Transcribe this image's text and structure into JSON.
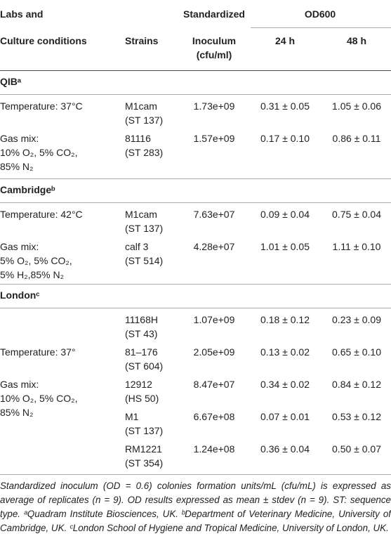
{
  "table": {
    "header": {
      "labs": [
        "Labs and",
        "Culture conditions"
      ],
      "strains": "Strains",
      "inoculum": [
        "Standardized",
        "Inoculum",
        "(cfu/ml)"
      ],
      "od": "OD600",
      "od24": "24 h",
      "od48": "48 h"
    },
    "sections": [
      {
        "title": "QIBᵃ",
        "rows": [
          {
            "conditions": [
              "Temperature: 37°C"
            ],
            "strain": [
              "M1cam",
              "(ST 137)"
            ],
            "inoculum": "1.73e+09",
            "od24": "0.31 ± 0.05",
            "od48": "1.05 ± 0.06"
          },
          {
            "conditions": [
              "Gas mix:",
              "10% O₂, 5% CO₂,",
              "85% N₂"
            ],
            "strain": [
              "81116",
              "(ST 283)"
            ],
            "inoculum": "1.57e+09",
            "od24": "0.17 ± 0.10",
            "od48": "0.86 ± 0.11"
          }
        ]
      },
      {
        "title": "Cambridgeᵇ",
        "rows": [
          {
            "conditions": [
              "Temperature: 42°C"
            ],
            "strain": [
              "M1cam",
              "(ST 137)"
            ],
            "inoculum": "7.63e+07",
            "od24": "0.09 ± 0.04",
            "od48": "0.75 ± 0.04"
          },
          {
            "conditions": [
              "Gas mix:",
              "5% O₂, 5% CO₂,",
              "5% H₂,85% N₂"
            ],
            "strain": [
              "calf 3",
              "(ST 514)"
            ],
            "inoculum": "4.28e+07",
            "od24": "1.01 ± 0.05",
            "od48": "1.11 ± 0.10"
          }
        ]
      },
      {
        "title": "Londonᶜ",
        "rows": [
          {
            "conditions": [],
            "strain": [
              "11168H",
              "(ST 43)"
            ],
            "inoculum": "1.07e+09",
            "od24": "0.18 ± 0.12",
            "od48": "0.23 ± 0.09"
          },
          {
            "conditions": [
              "Temperature: 37°"
            ],
            "strain": [
              "81–176",
              "(ST 604)"
            ],
            "inoculum": "2.05e+09",
            "od24": "0.13 ± 0.02",
            "od48": "0.65 ± 0.10"
          },
          {
            "conditions": [
              "Gas mix:",
              "10% O₂, 5% CO₂,",
              "85% N₂"
            ],
            "strain": [
              "12912",
              "(HS 50)"
            ],
            "inoculum": "8.47e+07",
            "od24": "0.34 ± 0.02",
            "od48": "0.84 ± 0.12"
          },
          {
            "conditions": [],
            "strain": [
              "M1",
              "(ST 137)"
            ],
            "inoculum": "6.67e+08",
            "od24": "0.07 ± 0.01",
            "od48": "0.53 ± 0.12"
          },
          {
            "conditions": [],
            "strain": [
              "RM1221",
              "(ST 354)"
            ],
            "inoculum": "1.24e+08",
            "od24": "0.36 ± 0.04",
            "od48": "0.50 ± 0.07"
          }
        ]
      }
    ],
    "footnote": "Standardized inoculum (OD = 0.6) colonies formation units/mL (cfu/mL) is expressed as average of replicates (n = 9). OD results expressed as mean ± stdev (n = 9). ST: sequence type. ᵃQuadram Institute Biosciences, UK. ᵇDepartment of Veterinary Medicine, University of Cambridge, UK. ᶜLondon School of Hygiene and Tropical Medicine, University of London, UK."
  }
}
